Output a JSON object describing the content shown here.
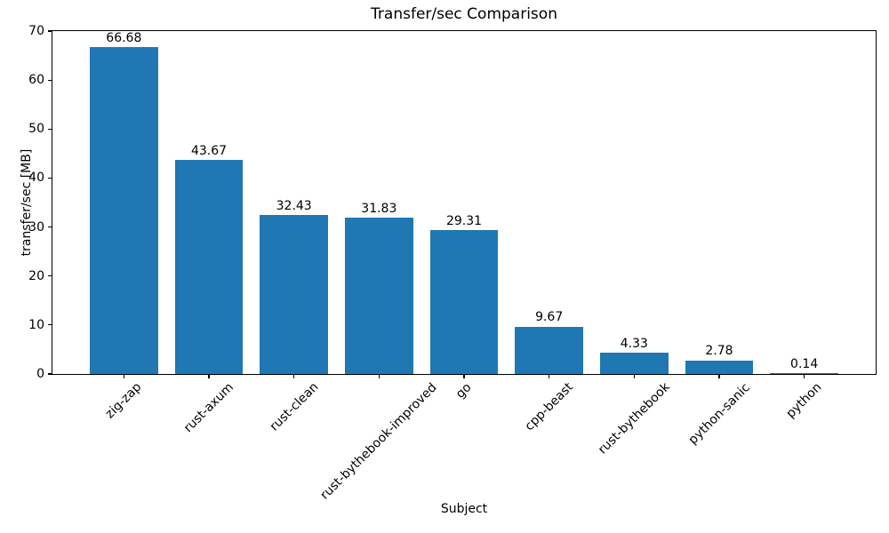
{
  "chart_data": {
    "type": "bar",
    "title": "Transfer/sec Comparison",
    "xlabel": "Subject",
    "ylabel": "transfer/sec [MB]",
    "categories": [
      "zig-zap",
      "rust-axum",
      "rust-clean",
      "rust-bythebook-improved",
      "go",
      "cpp-beast",
      "rust-bythebook",
      "python-sanic",
      "python"
    ],
    "values": [
      66.68,
      43.67,
      32.43,
      31.83,
      29.31,
      9.67,
      4.33,
      2.78,
      0.14
    ],
    "bar_labels": [
      "66.68",
      "43.67",
      "32.43",
      "31.83",
      "29.31",
      "9.67",
      "4.33",
      "2.78",
      "0.14"
    ],
    "ylim": [
      0,
      70
    ],
    "yticks": [
      0,
      10,
      20,
      30,
      40,
      50,
      60,
      70
    ],
    "x_tick_rotation_deg": 45,
    "bar_color": "#1f77b4",
    "axis_color": "#000000",
    "background_color": "#ffffff",
    "grid": false,
    "legend_position": "none"
  }
}
